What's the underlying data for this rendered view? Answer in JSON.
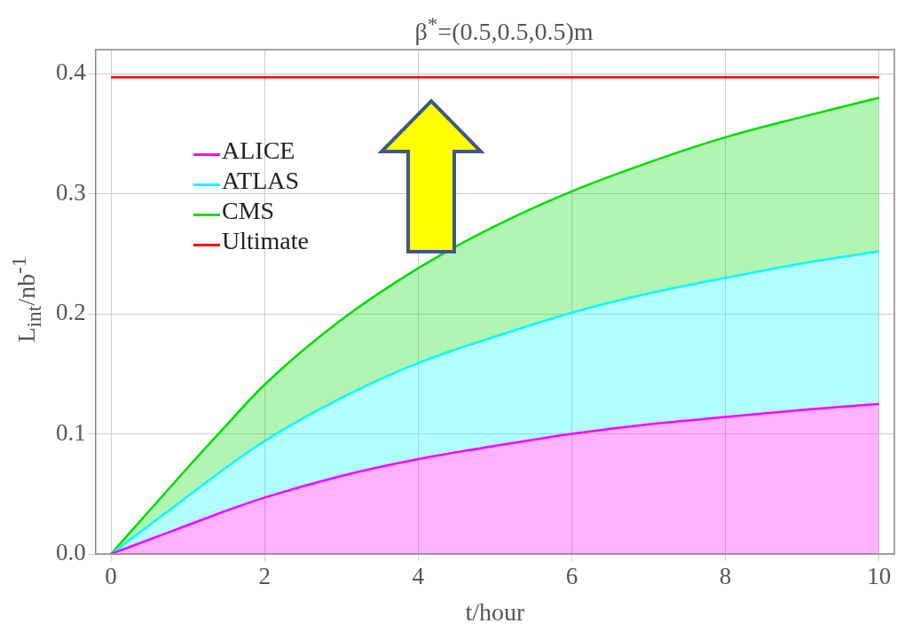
{
  "chart_data": {
    "type": "area",
    "title": "β$^{*}$=(0.5,0.5,0.5)m",
    "xlabel": "t/hour",
    "ylabel": "L$_{int}$/nb$^{-1}$",
    "x": [
      0,
      0.5,
      1,
      1.5,
      2,
      3,
      4,
      5,
      6,
      7,
      8,
      9,
      10
    ],
    "series": [
      {
        "name": "ALICE",
        "color": "#ff00ff",
        "values": [
          0,
          0.012,
          0.024,
          0.036,
          0.047,
          0.065,
          0.079,
          0.09,
          0.1,
          0.108,
          0.114,
          0.12,
          0.125
        ]
      },
      {
        "name": "ATLAS",
        "color": "#00ffff",
        "values": [
          0,
          0.024,
          0.048,
          0.072,
          0.094,
          0.13,
          0.159,
          0.181,
          0.201,
          0.217,
          0.23,
          0.242,
          0.252
        ]
      },
      {
        "name": "CMS",
        "color": "#00dd00",
        "values": [
          0,
          0.036,
          0.072,
          0.107,
          0.141,
          0.195,
          0.238,
          0.273,
          0.302,
          0.326,
          0.347,
          0.364,
          0.38
        ]
      },
      {
        "name": "Ultimate",
        "color": "#ff0000",
        "type": "line",
        "values": [
          0.397,
          0.397,
          0.397,
          0.397,
          0.397,
          0.397,
          0.397,
          0.397,
          0.397,
          0.397,
          0.397,
          0.397,
          0.397
        ]
      }
    ],
    "xlim": [
      -0.2,
      10.2
    ],
    "ylim": [
      0,
      0.42
    ],
    "xticks": [
      0,
      2,
      4,
      6,
      8,
      10
    ],
    "yticks": [
      {
        "value": 0,
        "label": "0.0"
      },
      {
        "value": 0.1,
        "label": "0.1"
      },
      {
        "value": 0.2,
        "label": "0.2"
      },
      {
        "value": 0.3,
        "label": "0.3"
      },
      {
        "value": 0.4,
        "label": "0.4"
      }
    ],
    "grid": true,
    "legend": "top left"
  }
}
